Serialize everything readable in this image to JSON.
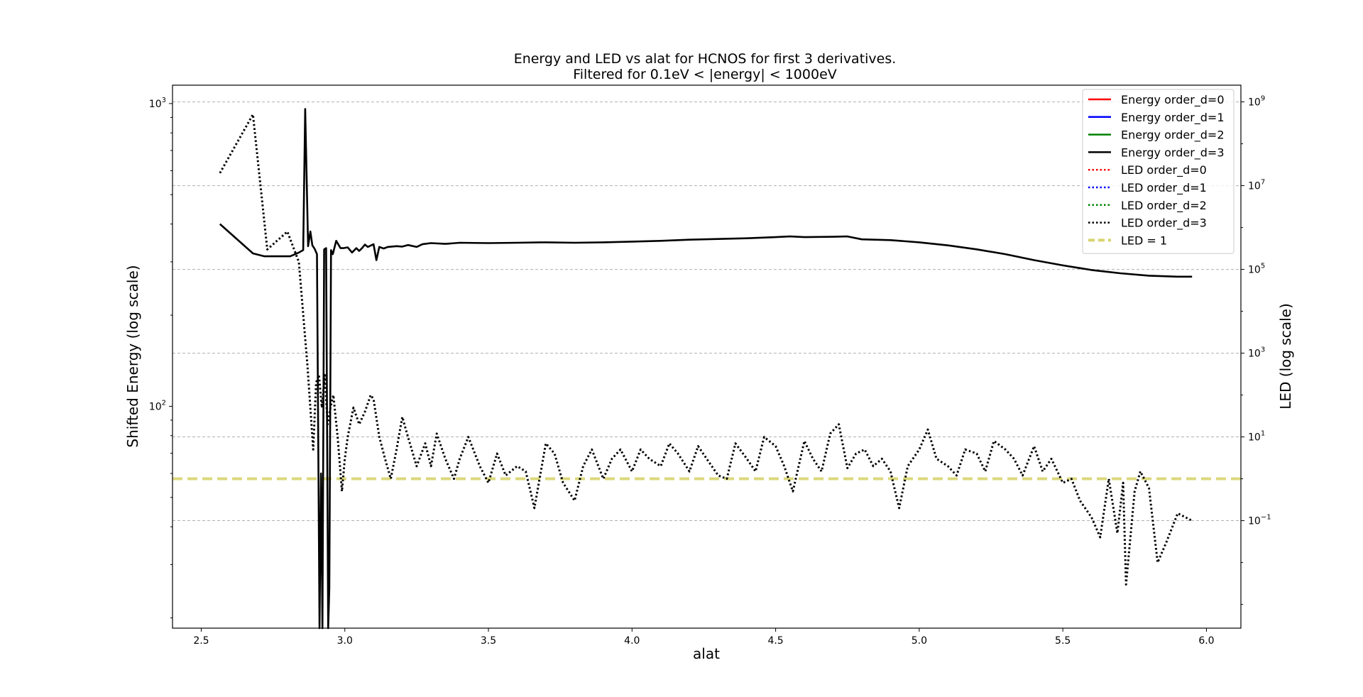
{
  "chart_data": {
    "type": "line",
    "title": "Energy and LED vs alat for HCNOS for first 3 derivatives.",
    "subtitle": "Filtered for 0.1eV < |energy| < 1000eV",
    "xlabel": "alat",
    "ylabel_left": "Shifted Energy (log scale)",
    "ylabel_right": "LED (log scale)",
    "xlim": [
      2.4,
      6.12
    ],
    "x_ticks": [
      "2.5",
      "3.0",
      "3.5",
      "4.0",
      "4.5",
      "5.0",
      "5.5",
      "6.0"
    ],
    "left_scale": "log",
    "left_ylim": [
      18.5,
      1150
    ],
    "left_ticks": [
      {
        "base": "10",
        "exp": "3",
        "value": 1000
      },
      {
        "base": "10",
        "exp": "2",
        "value": 100
      }
    ],
    "right_scale": "log",
    "right_ylim": [
      0.000271,
      2510000000.0
    ],
    "right_ticks": [
      {
        "base": "10",
        "exp": "9",
        "value": 1000000000.0
      },
      {
        "base": "10",
        "exp": "7",
        "value": 10000000.0
      },
      {
        "base": "10",
        "exp": "5",
        "value": 100000.0
      },
      {
        "base": "10",
        "exp": "3",
        "value": 1000.0
      },
      {
        "base": "10",
        "exp": "1",
        "value": 10
      },
      {
        "base": "10",
        "exp": "−1",
        "value": 0.1
      }
    ],
    "grid": "horizontal dashed, right axis",
    "legend_position": "top-right",
    "legend": [
      {
        "label": "Energy order_d=0",
        "color": "#ff0000",
        "style": "solid"
      },
      {
        "label": "Energy order_d=1",
        "color": "#0000ff",
        "style": "solid"
      },
      {
        "label": "Energy order_d=2",
        "color": "#008000",
        "style": "solid"
      },
      {
        "label": "Energy order_d=3",
        "color": "#000000",
        "style": "solid"
      },
      {
        "label": "LED order_d=0",
        "color": "#ff0000",
        "style": "dotted"
      },
      {
        "label": "LED order_d=1",
        "color": "#0000ff",
        "style": "dotted"
      },
      {
        "label": "LED order_d=2",
        "color": "#008000",
        "style": "dotted"
      },
      {
        "label": "LED order_d=3",
        "color": "#000000",
        "style": "dotted"
      },
      {
        "label": "LED = 1",
        "color": "#d8d470",
        "style": "dashed"
      }
    ],
    "reference_line": {
      "label": "LED = 1",
      "value": 1,
      "color": "#d8d470"
    },
    "series": [
      {
        "name": "Energy order_d=3",
        "axis": "left",
        "color": "#000000",
        "style": "solid",
        "x": [
          2.565,
          2.68,
          2.72,
          2.81,
          2.84,
          2.855,
          2.862,
          2.872,
          2.88,
          2.887,
          2.895,
          2.903,
          2.912,
          2.917,
          2.922,
          2.928,
          2.935,
          2.942,
          2.946,
          2.952,
          2.958,
          2.97,
          2.985,
          2.995,
          3.01,
          3.025,
          3.04,
          3.05,
          3.06,
          3.07,
          3.08,
          3.1,
          3.11,
          3.12,
          3.135,
          3.15,
          3.18,
          3.2,
          3.22,
          3.25,
          3.27,
          3.3,
          3.35,
          3.4,
          3.5,
          3.6,
          3.7,
          3.8,
          3.9,
          4.0,
          4.1,
          4.2,
          4.3,
          4.4,
          4.5,
          4.55,
          4.6,
          4.7,
          4.75,
          4.8,
          4.9,
          5.0,
          5.05,
          5.1,
          5.2,
          5.3,
          5.4,
          5.5,
          5.6,
          5.7,
          5.8,
          5.9,
          5.95
        ],
        "y": [
          400,
          320,
          313,
          313,
          322,
          328,
          960,
          338,
          378,
          340,
          331,
          318,
          12,
          60,
          12,
          330,
          333,
          12,
          25,
          328,
          318,
          352,
          333,
          333,
          335,
          322,
          333,
          326,
          333,
          342,
          336,
          343,
          304,
          336,
          332,
          336,
          338,
          337,
          341,
          336,
          343,
          346,
          344,
          347,
          346,
          347,
          348,
          347,
          348,
          350,
          352,
          355,
          357,
          359,
          362,
          364,
          362,
          363,
          364,
          356,
          354,
          348,
          344,
          340,
          330,
          318,
          304,
          292,
          282,
          275,
          270,
          268,
          268
        ]
      },
      {
        "name": "LED order_d=3",
        "axis": "right",
        "color": "#000000",
        "style": "dotted",
        "x": [
          2.565,
          2.68,
          2.73,
          2.8,
          2.84,
          2.87,
          2.89,
          2.9,
          2.91,
          2.92,
          2.93,
          2.94,
          2.95,
          2.96,
          2.975,
          2.99,
          3.0,
          3.01,
          3.03,
          3.05,
          3.07,
          3.09,
          3.1,
          3.12,
          3.14,
          3.16,
          3.18,
          3.2,
          3.22,
          3.25,
          3.28,
          3.3,
          3.32,
          3.35,
          3.38,
          3.4,
          3.43,
          3.47,
          3.5,
          3.53,
          3.56,
          3.6,
          3.63,
          3.66,
          3.7,
          3.73,
          3.76,
          3.8,
          3.83,
          3.86,
          3.9,
          3.93,
          3.96,
          4.0,
          4.03,
          4.06,
          4.1,
          4.13,
          4.16,
          4.2,
          4.23,
          4.26,
          4.3,
          4.33,
          4.36,
          4.4,
          4.43,
          4.46,
          4.5,
          4.53,
          4.56,
          4.6,
          4.63,
          4.66,
          4.69,
          4.72,
          4.75,
          4.78,
          4.81,
          4.84,
          4.87,
          4.9,
          4.93,
          4.96,
          5.0,
          5.03,
          5.06,
          5.1,
          5.13,
          5.16,
          5.2,
          5.23,
          5.26,
          5.3,
          5.33,
          5.36,
          5.4,
          5.43,
          5.46,
          5.5,
          5.53,
          5.56,
          5.6,
          5.63,
          5.66,
          5.69,
          5.71,
          5.72,
          5.75,
          5.77,
          5.8,
          5.83,
          5.86,
          5.9,
          5.95
        ],
        "y": [
          20000000.0,
          500000000.0,
          300000.0,
          800000.0,
          150000.0,
          500,
          5,
          200,
          300,
          50,
          300,
          20,
          50,
          100,
          10,
          0.5,
          3,
          10,
          50,
          20,
          40,
          100,
          80,
          10,
          3,
          1,
          5,
          30,
          10,
          2,
          7,
          2,
          12,
          3,
          1,
          3,
          10,
          2,
          0.8,
          4,
          1.2,
          2,
          1.5,
          0.2,
          7,
          4,
          0.8,
          0.3,
          2,
          5,
          1,
          3,
          5,
          1.5,
          5,
          3,
          2,
          7,
          4,
          1.5,
          6,
          3,
          1.2,
          1,
          7,
          3,
          1.5,
          10,
          6,
          2,
          0.5,
          8,
          3,
          1.5,
          12,
          20,
          1.8,
          4,
          5,
          2,
          3,
          1.5,
          0.2,
          2,
          5,
          15,
          3,
          2,
          1.2,
          5,
          4,
          1.5,
          8,
          5,
          3,
          1.2,
          6,
          1.5,
          3,
          0.8,
          1,
          0.3,
          0.12,
          0.04,
          1,
          0.05,
          0.8,
          0.003,
          0.5,
          1.5,
          0.6,
          0.01,
          0.03,
          0.15,
          0.1
        ]
      }
    ]
  }
}
